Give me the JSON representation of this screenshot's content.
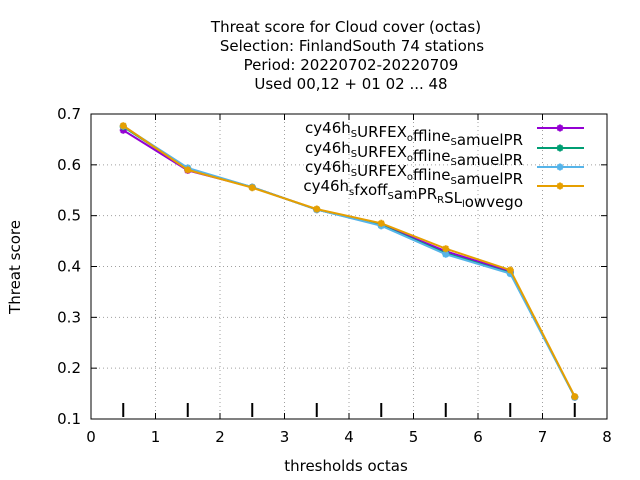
{
  "chart_data": {
    "type": "line",
    "title_lines": [
      "Threat score  for Cloud cover (octas)",
      "Selection: FinlandSouth     74 stations",
      "Period: 20220702-20220709",
      "Used  00,12  + 01 02 ... 48"
    ],
    "xlabel": "thresholds octas",
    "ylabel": "Threat score",
    "xlim": [
      0,
      8
    ],
    "ylim": [
      0.1,
      0.7
    ],
    "xticks": [
      "0",
      "1",
      "2",
      "3",
      "4",
      "5",
      "6",
      "7",
      "8"
    ],
    "yticks": [
      "0.1",
      "0.2",
      "0.3",
      "0.4",
      "0.5",
      "0.6",
      "0.7"
    ],
    "grid": true,
    "legend_position": "top-right",
    "x": [
      0.5,
      1.5,
      2.5,
      3.5,
      4.5,
      5.5,
      6.5,
      7.5
    ],
    "threshold_marks": [
      0.5,
      1.5,
      2.5,
      3.5,
      4.5,
      5.5,
      6.5,
      7.5
    ],
    "series": [
      {
        "name": "cy46h_SURFEX_offline_SamuelPR",
        "color": "#9400d3",
        "values": [
          0.668,
          0.589,
          0.556,
          0.512,
          0.482,
          0.43,
          0.39,
          0.143
        ]
      },
      {
        "name": "cy46h_SURFEX_offline_SamuelPR",
        "color": "#009e73",
        "values": [
          0.675,
          0.592,
          0.556,
          0.512,
          0.481,
          0.426,
          0.387,
          0.143
        ]
      },
      {
        "name": "cy46h_SURFEX_offline_SamuelPR",
        "color": "#56b4e9",
        "values": [
          0.676,
          0.594,
          0.556,
          0.512,
          0.48,
          0.424,
          0.386,
          0.143
        ]
      },
      {
        "name": "cy46h_sfxoff_SamPR_RSL_lowvego",
        "color": "#e69f00",
        "values": [
          0.677,
          0.59,
          0.555,
          0.513,
          0.485,
          0.435,
          0.393,
          0.144
        ]
      }
    ]
  }
}
